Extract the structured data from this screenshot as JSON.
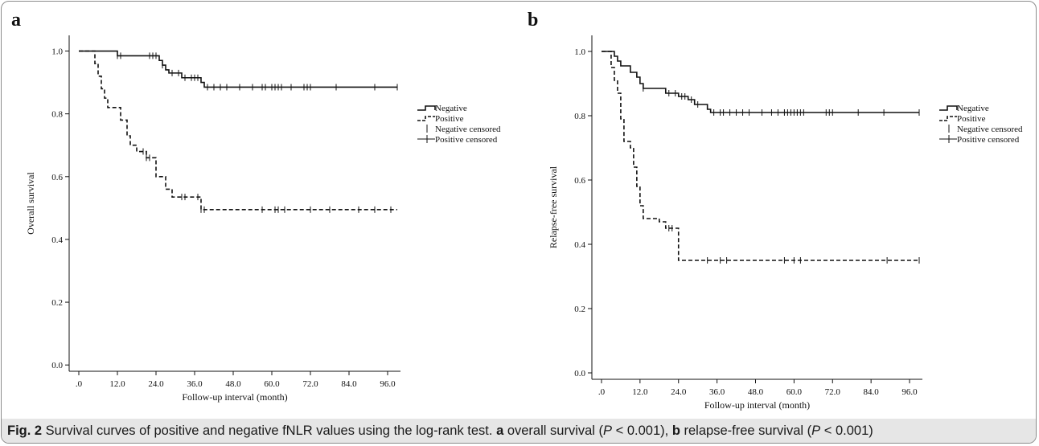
{
  "caption": {
    "figure_label": "Fig. 2",
    "text_1": " Survival curves of positive and negative fNLR values using the log-rank test. ",
    "label_a": "a",
    "text_2": " overall survival (",
    "p_a": "P",
    "text_3": " < 0.001), ",
    "label_b": "b",
    "text_4": " relapse-free survival (",
    "p_b": "P",
    "text_5": " < 0.001)"
  },
  "colors": {
    "lines": "#111111",
    "caption_bg": "#e6e6e6",
    "frame": "#8c8c8c"
  },
  "chart_data": [
    {
      "panel_label": "a",
      "type": "line",
      "subtype": "kaplan-meier step",
      "xlabel": "Follow-up interval (month)",
      "ylabel": "Overall survival",
      "xlim": [
        -3,
        100
      ],
      "ylim": [
        -0.02,
        1.05
      ],
      "x_ticks": [
        0,
        12,
        24,
        36,
        48,
        60,
        72,
        84,
        96
      ],
      "x_tick_labels": [
        ".0",
        "12.0",
        "24.0",
        "36.0",
        "48.0",
        "60.0",
        "72.0",
        "84.0",
        "96.0"
      ],
      "y_ticks": [
        0,
        0.2,
        0.4,
        0.6,
        0.8,
        1.0
      ],
      "y_tick_labels": [
        "0.0",
        "0.2",
        "0.4",
        "0.6",
        "0.8",
        "1.0"
      ],
      "legend": {
        "position": "right",
        "entries": [
          "Negative",
          "Positive",
          "Negative censored",
          "Positive censored"
        ]
      },
      "series": [
        {
          "name": "Negative",
          "style": "solid",
          "steps": [
            [
              0,
              1.0
            ],
            [
              12,
              0.985
            ],
            [
              25,
              0.97
            ],
            [
              26,
              0.955
            ],
            [
              27,
              0.94
            ],
            [
              28,
              0.93
            ],
            [
              32,
              0.915
            ],
            [
              38,
              0.9
            ],
            [
              39,
              0.885
            ],
            [
              99,
              0.885
            ]
          ],
          "censored": [
            12,
            13,
            22,
            23,
            24,
            26,
            29,
            31,
            33,
            35,
            36,
            37,
            40,
            42,
            44,
            46,
            50,
            54,
            57,
            58,
            60,
            61,
            62,
            63,
            66,
            70,
            71,
            72,
            80,
            92,
            99
          ]
        },
        {
          "name": "Positive",
          "style": "dashed",
          "steps": [
            [
              0,
              1.0
            ],
            [
              5,
              0.96
            ],
            [
              6,
              0.92
            ],
            [
              7,
              0.88
            ],
            [
              8,
              0.85
            ],
            [
              9,
              0.82
            ],
            [
              13,
              0.78
            ],
            [
              15,
              0.73
            ],
            [
              16,
              0.7
            ],
            [
              18,
              0.68
            ],
            [
              21,
              0.66
            ],
            [
              24,
              0.6
            ],
            [
              27,
              0.56
            ],
            [
              29,
              0.535
            ],
            [
              38,
              0.495
            ],
            [
              99,
              0.495
            ]
          ],
          "censored": [
            20,
            21,
            22,
            32,
            33,
            37,
            38,
            39,
            57,
            61,
            62,
            64,
            72,
            78,
            87,
            92,
            97
          ]
        }
      ]
    },
    {
      "panel_label": "b",
      "type": "line",
      "subtype": "kaplan-meier step",
      "xlabel": "Follow-up interval (month)",
      "ylabel": "Relapse-free survival",
      "xlim": [
        -3,
        100
      ],
      "ylim": [
        -0.02,
        1.05
      ],
      "x_ticks": [
        0,
        12,
        24,
        36,
        48,
        60,
        72,
        84,
        96
      ],
      "x_tick_labels": [
        ".0",
        "12.0",
        "24.0",
        "36.0",
        "48.0",
        "60.0",
        "72.0",
        "84.0",
        "96.0"
      ],
      "y_ticks": [
        0,
        0.2,
        0.4,
        0.6,
        0.8,
        1.0
      ],
      "y_tick_labels": [
        "0.0",
        "0.2",
        "0.4",
        "0.6",
        "0.8",
        "1.0"
      ],
      "legend": {
        "position": "right",
        "entries": [
          "Negative",
          "Positive",
          "Negative censored",
          "Positive censored"
        ]
      },
      "series": [
        {
          "name": "Negative",
          "style": "solid",
          "steps": [
            [
              0,
              1.0
            ],
            [
              4,
              0.985
            ],
            [
              5,
              0.97
            ],
            [
              6,
              0.955
            ],
            [
              9,
              0.935
            ],
            [
              11,
              0.92
            ],
            [
              12,
              0.9
            ],
            [
              13,
              0.885
            ],
            [
              20,
              0.87
            ],
            [
              24,
              0.86
            ],
            [
              27,
              0.85
            ],
            [
              29,
              0.835
            ],
            [
              33,
              0.82
            ],
            [
              34,
              0.81
            ],
            [
              99,
              0.81
            ]
          ],
          "censored": [
            13,
            21,
            23,
            25,
            26,
            28,
            30,
            35,
            37,
            38,
            40,
            42,
            44,
            46,
            50,
            53,
            55,
            57,
            58,
            59,
            60,
            61,
            62,
            63,
            70,
            71,
            72,
            80,
            88,
            99
          ]
        },
        {
          "name": "Positive",
          "style": "dashed",
          "steps": [
            [
              0,
              1.0
            ],
            [
              3,
              0.95
            ],
            [
              4,
              0.91
            ],
            [
              5,
              0.87
            ],
            [
              6,
              0.79
            ],
            [
              7,
              0.72
            ],
            [
              9,
              0.7
            ],
            [
              10,
              0.64
            ],
            [
              11,
              0.58
            ],
            [
              12,
              0.52
            ],
            [
              13,
              0.48
            ],
            [
              18,
              0.47
            ],
            [
              20,
              0.45
            ],
            [
              24,
              0.35
            ],
            [
              99,
              0.35
            ]
          ],
          "censored": [
            21,
            22,
            33,
            37,
            39,
            57,
            60,
            62,
            89,
            99
          ]
        }
      ]
    }
  ]
}
